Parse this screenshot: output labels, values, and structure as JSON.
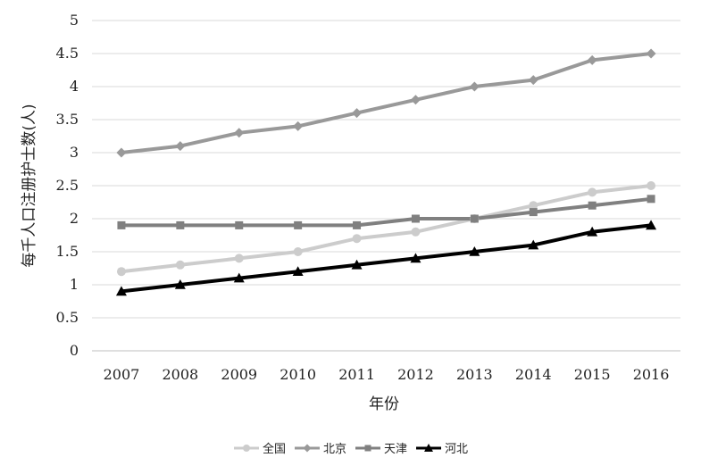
{
  "chart_data": {
    "type": "line",
    "title": "",
    "xlabel": "年份",
    "ylabel": "每千人口注册护士数(人)",
    "ylim": [
      0,
      5
    ],
    "yticks": [
      0,
      0.5,
      1,
      1.5,
      2,
      2.5,
      3,
      3.5,
      4,
      4.5,
      5
    ],
    "grid": true,
    "legend": "bottom",
    "categories": [
      "2007",
      "2008",
      "2009",
      "2010",
      "2011",
      "2012",
      "2013",
      "2014",
      "2015",
      "2016"
    ],
    "series": [
      {
        "name": "全国",
        "color": "#cccccc",
        "marker": "circle",
        "values": [
          1.2,
          1.3,
          1.4,
          1.5,
          1.7,
          1.8,
          2.0,
          2.2,
          2.4,
          2.5
        ]
      },
      {
        "name": "北京",
        "color": "#999999",
        "marker": "diamond",
        "values": [
          3.0,
          3.1,
          3.3,
          3.4,
          3.6,
          3.8,
          4.0,
          4.1,
          4.4,
          4.5
        ]
      },
      {
        "name": "天津",
        "color": "#808080",
        "marker": "square",
        "values": [
          1.9,
          1.9,
          1.9,
          1.9,
          1.9,
          2.0,
          2.0,
          2.1,
          2.2,
          2.3
        ]
      },
      {
        "name": "河北",
        "color": "#000000",
        "marker": "triangle",
        "values": [
          0.9,
          1.0,
          1.1,
          1.2,
          1.3,
          1.4,
          1.5,
          1.6,
          1.8,
          1.9
        ]
      }
    ]
  }
}
